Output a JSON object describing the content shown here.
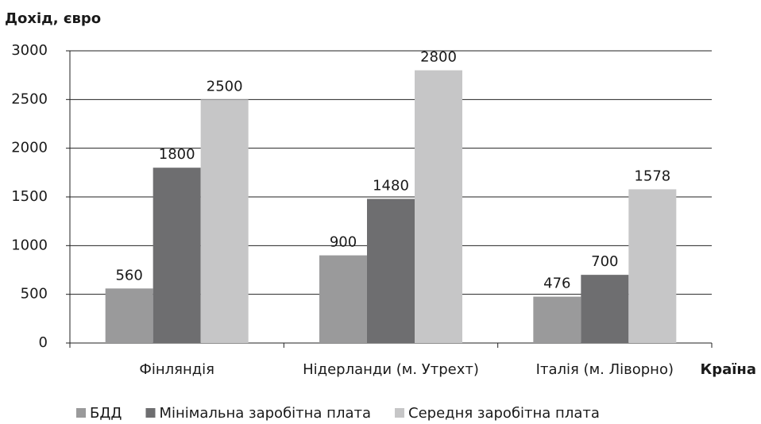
{
  "chart_data": {
    "type": "bar",
    "y_axis_label": "Дохід, євро",
    "x_axis_label": "Країна",
    "categories": [
      "Фінляндія",
      "Нідерланди (м. Утрехт)",
      "Італія (м. Ліворно)"
    ],
    "series": [
      {
        "name": "БДД",
        "color": "#9a9a9b",
        "values": [
          560,
          900,
          476
        ]
      },
      {
        "name": "Мінімальна заробітна плата",
        "color": "#6e6e70",
        "values": [
          1800,
          1480,
          700
        ]
      },
      {
        "name": "Середня заробітна плата",
        "color": "#c6c6c7",
        "values": [
          2500,
          2800,
          1578
        ]
      }
    ],
    "ylim": [
      0,
      3000
    ],
    "yticks": [
      0,
      500,
      1000,
      1500,
      2000,
      2500,
      3000
    ],
    "grid": true,
    "legend": "bottom"
  }
}
